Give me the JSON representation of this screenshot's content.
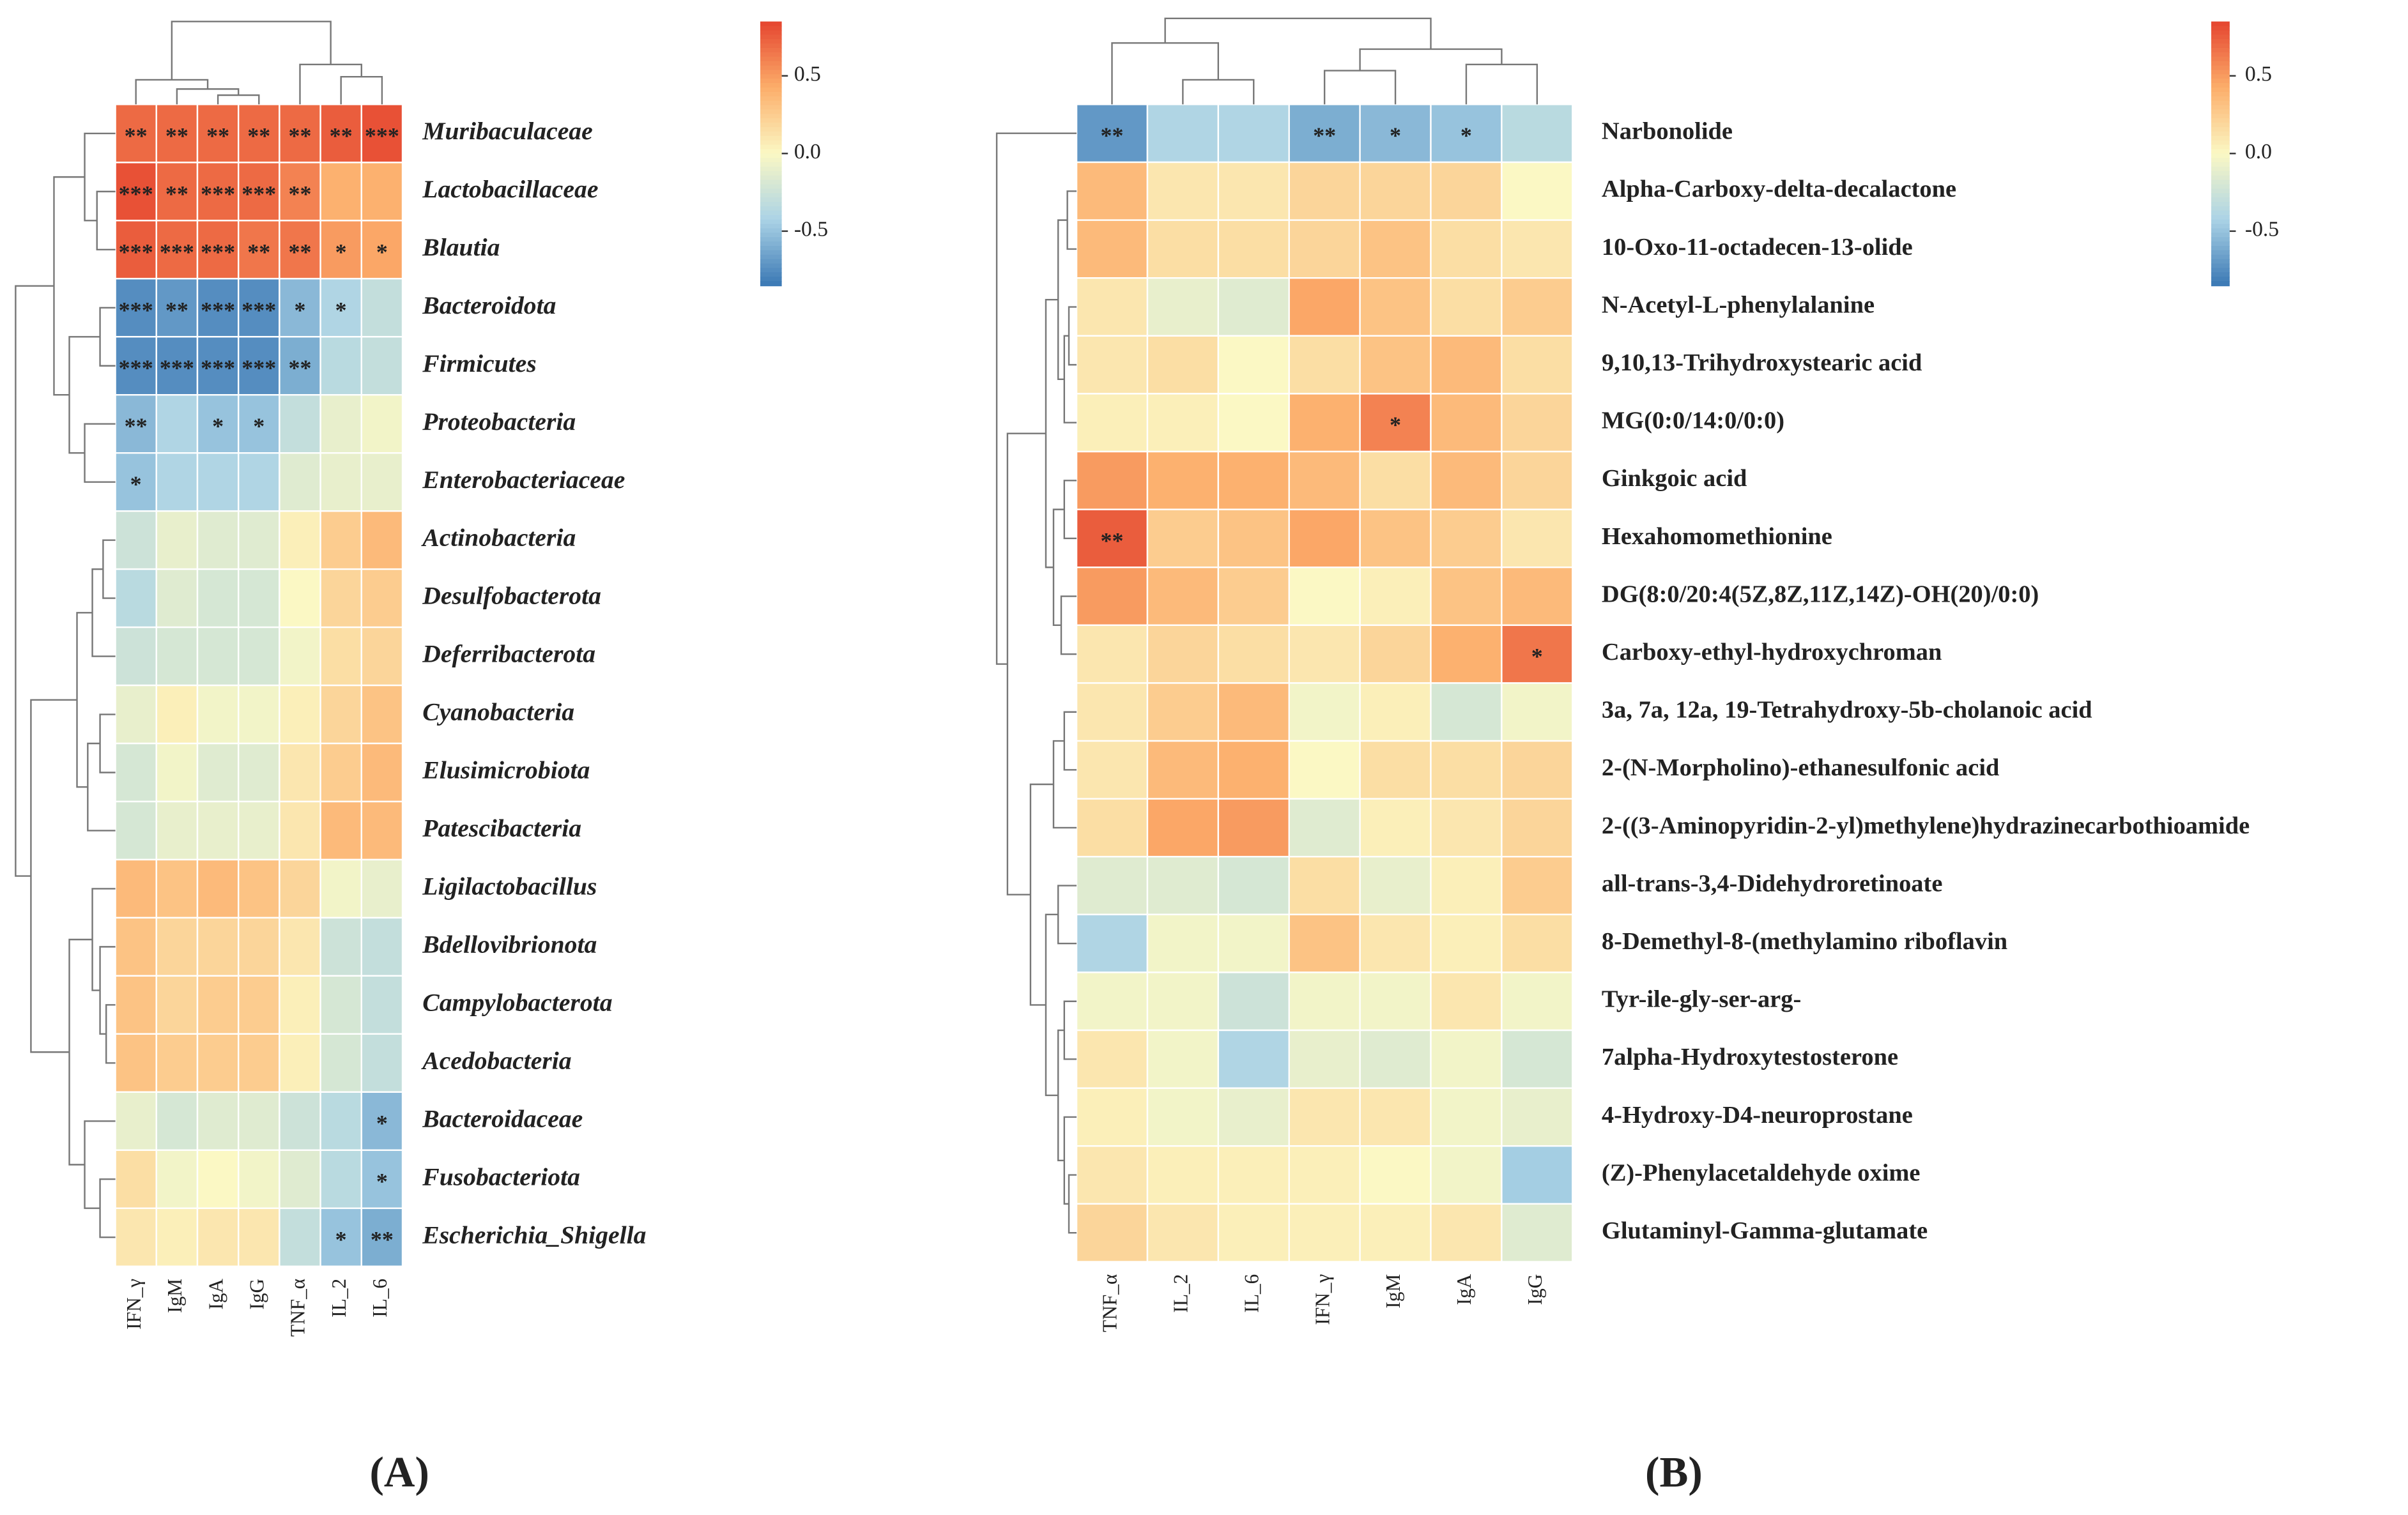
{
  "chart_data": [
    {
      "type": "heatmap",
      "panel_label": "(A)",
      "columns": [
        "IFN_γ",
        "IgM",
        "IgA",
        "IgG",
        "TNF_α",
        "IL_2",
        "IL_6"
      ],
      "rows": [
        "Muribaculaceae",
        "Lactobacillaceae",
        "Blautia",
        "Bacteroidota",
        "Firmicutes",
        "Proteobacteria",
        "Enterobacteriaceae",
        "Actinobacteria",
        "Desulfobacterota",
        "Deferribacterota",
        "Cyanobacteria",
        "Elusimicrobiota",
        "Patescibacteria",
        "Ligilactobacillus",
        "Bdellovibrionota",
        "Campylobacterota",
        "Acedobacteria",
        "Bacteroidaceae",
        "Fusobacteriota",
        "Escherichia_Shigella"
      ],
      "values": [
        [
          0.7,
          0.7,
          0.7,
          0.7,
          0.7,
          0.75,
          0.8
        ],
        [
          0.8,
          0.7,
          0.7,
          0.7,
          0.6,
          0.4,
          0.4
        ],
        [
          0.75,
          0.7,
          0.7,
          0.65,
          0.65,
          0.5,
          0.45
        ],
        [
          -0.75,
          -0.7,
          -0.75,
          -0.75,
          -0.55,
          -0.4,
          -0.3
        ],
        [
          -0.75,
          -0.75,
          -0.75,
          -0.75,
          -0.6,
          -0.35,
          -0.3
        ],
        [
          -0.55,
          -0.4,
          -0.5,
          -0.5,
          -0.3,
          -0.1,
          -0.05
        ],
        [
          -0.5,
          -0.4,
          -0.4,
          -0.4,
          -0.15,
          -0.1,
          -0.1
        ],
        [
          -0.25,
          -0.1,
          -0.15,
          -0.15,
          0.05,
          0.25,
          0.35
        ],
        [
          -0.35,
          -0.15,
          -0.2,
          -0.2,
          0.0,
          0.2,
          0.25
        ],
        [
          -0.25,
          -0.2,
          -0.2,
          -0.2,
          -0.05,
          0.15,
          0.2
        ],
        [
          -0.1,
          0.05,
          -0.05,
          -0.05,
          0.05,
          0.2,
          0.3
        ],
        [
          -0.2,
          -0.05,
          -0.15,
          -0.15,
          0.1,
          0.25,
          0.35
        ],
        [
          -0.2,
          -0.1,
          -0.1,
          -0.1,
          0.1,
          0.35,
          0.35
        ],
        [
          0.35,
          0.3,
          0.35,
          0.3,
          0.2,
          -0.05,
          -0.1
        ],
        [
          0.3,
          0.2,
          0.2,
          0.2,
          0.1,
          -0.25,
          -0.3
        ],
        [
          0.3,
          0.2,
          0.25,
          0.25,
          0.05,
          -0.2,
          -0.3
        ],
        [
          0.3,
          0.25,
          0.25,
          0.25,
          0.05,
          -0.2,
          -0.3
        ],
        [
          -0.1,
          -0.2,
          -0.15,
          -0.15,
          -0.25,
          -0.35,
          -0.55
        ],
        [
          0.15,
          -0.05,
          0.0,
          -0.05,
          -0.15,
          -0.35,
          -0.5
        ],
        [
          0.1,
          0.05,
          0.1,
          0.1,
          -0.3,
          -0.5,
          -0.6
        ]
      ],
      "annotations": [
        [
          "**",
          "**",
          "**",
          "**",
          "**",
          "**",
          "***"
        ],
        [
          "***",
          "**",
          "***",
          "***",
          "**",
          null,
          null
        ],
        [
          "***",
          "***",
          "***",
          "**",
          "**",
          "*",
          "*"
        ],
        [
          "***",
          "**",
          "***",
          "***",
          "*",
          "*",
          null
        ],
        [
          "***",
          "***",
          "***",
          "***",
          "**",
          null,
          null
        ],
        [
          "**",
          null,
          "*",
          "*",
          null,
          null,
          null
        ],
        [
          "*",
          null,
          null,
          null,
          null,
          null,
          null
        ],
        [
          null,
          null,
          null,
          null,
          null,
          null,
          null
        ],
        [
          null,
          null,
          null,
          null,
          null,
          null,
          null
        ],
        [
          null,
          null,
          null,
          null,
          null,
          null,
          null
        ],
        [
          null,
          null,
          null,
          null,
          null,
          null,
          null
        ],
        [
          null,
          null,
          null,
          null,
          null,
          null,
          null
        ],
        [
          null,
          null,
          null,
          null,
          null,
          null,
          null
        ],
        [
          null,
          null,
          null,
          null,
          null,
          null,
          null
        ],
        [
          null,
          null,
          null,
          null,
          null,
          null,
          null
        ],
        [
          null,
          null,
          null,
          null,
          null,
          null,
          null
        ],
        [
          null,
          null,
          null,
          null,
          null,
          null,
          null
        ],
        [
          null,
          null,
          null,
          null,
          null,
          null,
          "*"
        ],
        [
          null,
          null,
          null,
          null,
          null,
          null,
          "*"
        ],
        [
          null,
          null,
          null,
          null,
          null,
          "*",
          "**"
        ]
      ],
      "zlim": [
        -0.85,
        0.85
      ],
      "zticks": [
        -0.5,
        {
          "value": 0,
          "label": "0.0"
        },
        0.5
      ],
      "colors": [
        "#3a78b4",
        "#abd3e6",
        "#fbf8c4",
        "#fcad6a",
        "#e5452f"
      ]
    },
    {
      "type": "heatmap",
      "panel_label": "(B)",
      "columns": [
        "TNF_α",
        "IL_2",
        "IL_6",
        "IFN_γ",
        "IgM",
        "IgA",
        "IgG"
      ],
      "rows": [
        "Narbonolide",
        "Alpha-Carboxy-delta-decalactone",
        "10-Oxo-11-octadecen-13-olide",
        "N-Acetyl-L-phenylalanine",
        "9,10,13-Trihydroxystearic acid",
        "MG(0:0/14:0/0:0)",
        "Ginkgoic acid",
        "Hexahomomethionine",
        "DG(8:0/20:4(5Z,8Z,11Z,14Z)-OH(20)/0:0)",
        "Carboxy-ethyl-hydroxychroman",
        "3a, 7a, 12a, 19-Tetrahydroxy-5b-cholanoic acid",
        "2-(N-Morpholino)-ethanesulfonic acid",
        "2-((3-Aminopyridin-2-yl)methylene)hydrazinecarbothioamide",
        "all-trans-3,4-Didehydroretinoate",
        "8-Demethyl-8-(methylamino riboflavin",
        "Tyr-ile-gly-ser-arg-",
        "7alpha-Hydroxytestosterone",
        "4-Hydroxy-D4-neuroprostane",
        "(Z)-Phenylacetaldehyde oxime",
        "Glutaminyl-Gamma-glutamate"
      ],
      "values": [
        [
          -0.7,
          -0.4,
          -0.4,
          -0.6,
          -0.55,
          -0.5,
          -0.35
        ],
        [
          0.35,
          0.1,
          0.1,
          0.2,
          0.2,
          0.2,
          0.0
        ],
        [
          0.35,
          0.15,
          0.15,
          0.2,
          0.3,
          0.15,
          0.1
        ],
        [
          0.1,
          -0.1,
          -0.15,
          0.45,
          0.3,
          0.15,
          0.25
        ],
        [
          0.1,
          0.15,
          0.0,
          0.15,
          0.3,
          0.35,
          0.15
        ],
        [
          0.05,
          0.05,
          0.0,
          0.4,
          0.6,
          0.35,
          0.2
        ],
        [
          0.5,
          0.4,
          0.4,
          0.35,
          0.15,
          0.35,
          0.2
        ],
        [
          0.75,
          0.25,
          0.3,
          0.45,
          0.3,
          0.25,
          0.1
        ],
        [
          0.5,
          0.35,
          0.25,
          0.0,
          0.05,
          0.3,
          0.35
        ],
        [
          0.1,
          0.2,
          0.15,
          0.1,
          0.2,
          0.4,
          0.65
        ],
        [
          0.1,
          0.25,
          0.35,
          -0.05,
          0.05,
          -0.2,
          -0.05
        ],
        [
          0.1,
          0.35,
          0.4,
          0.0,
          0.15,
          0.15,
          0.2
        ],
        [
          0.15,
          0.45,
          0.5,
          -0.15,
          0.05,
          0.1,
          0.2
        ],
        [
          -0.15,
          -0.15,
          -0.2,
          0.15,
          -0.1,
          0.05,
          0.25
        ],
        [
          -0.4,
          -0.05,
          -0.05,
          0.3,
          0.1,
          0.05,
          0.15
        ],
        [
          -0.05,
          -0.05,
          -0.25,
          -0.05,
          -0.05,
          0.1,
          -0.05
        ],
        [
          0.1,
          -0.05,
          -0.4,
          -0.1,
          -0.15,
          -0.05,
          -0.2
        ],
        [
          0.05,
          -0.05,
          -0.1,
          0.1,
          0.1,
          -0.05,
          -0.1
        ],
        [
          0.1,
          0.05,
          0.05,
          0.05,
          0.0,
          -0.05,
          -0.45
        ],
        [
          0.2,
          0.1,
          0.05,
          0.05,
          0.05,
          0.1,
          -0.15
        ]
      ],
      "annotations": [
        [
          "**",
          null,
          null,
          "**",
          "*",
          "*",
          null
        ],
        [
          null,
          null,
          null,
          null,
          null,
          null,
          null
        ],
        [
          null,
          null,
          null,
          null,
          null,
          null,
          null
        ],
        [
          null,
          null,
          null,
          null,
          null,
          null,
          null
        ],
        [
          null,
          null,
          null,
          null,
          null,
          null,
          null
        ],
        [
          null,
          null,
          null,
          null,
          "*",
          null,
          null
        ],
        [
          null,
          null,
          null,
          null,
          null,
          null,
          null
        ],
        [
          "**",
          null,
          null,
          null,
          null,
          null,
          null
        ],
        [
          null,
          null,
          null,
          null,
          null,
          null,
          null
        ],
        [
          null,
          null,
          null,
          null,
          null,
          null,
          "*"
        ],
        [
          null,
          null,
          null,
          null,
          null,
          null,
          null
        ],
        [
          null,
          null,
          null,
          null,
          null,
          null,
          null
        ],
        [
          null,
          null,
          null,
          null,
          null,
          null,
          null
        ],
        [
          null,
          null,
          null,
          null,
          null,
          null,
          null
        ],
        [
          null,
          null,
          null,
          null,
          null,
          null,
          null
        ],
        [
          null,
          null,
          null,
          null,
          null,
          null,
          null
        ],
        [
          null,
          null,
          null,
          null,
          null,
          null,
          null
        ],
        [
          null,
          null,
          null,
          null,
          null,
          null,
          null
        ],
        [
          null,
          null,
          null,
          null,
          null,
          null,
          null
        ],
        [
          null,
          null,
          null,
          null,
          null,
          null,
          null
        ]
      ],
      "zlim": [
        -0.85,
        0.85
      ],
      "zticks": [
        -0.5,
        {
          "value": 0,
          "label": "0.0"
        },
        0.5
      ],
      "colors": [
        "#3a78b4",
        "#abd3e6",
        "#fbf8c4",
        "#fcad6a",
        "#e5452f"
      ]
    }
  ]
}
